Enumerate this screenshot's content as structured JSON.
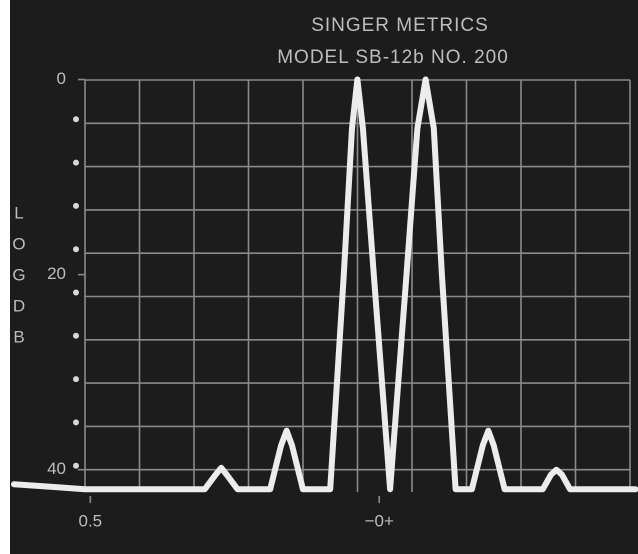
{
  "chart_data": {
    "type": "line",
    "title": "SINGER METRICS",
    "subtitle": "MODEL SB-12b NO. 200",
    "ylabel": [
      "L",
      "O",
      "G",
      "D",
      "B"
    ],
    "x": [
      -1.3,
      -0.5,
      0,
      1,
      2.2,
      2.4,
      2.5,
      2.6,
      2.8,
      3.4,
      3.6,
      3.7,
      3.8,
      4.0,
      4.5,
      4.75,
      4.9,
      5.0,
      5.1,
      5.3,
      5.6,
      5.9,
      6.1,
      6.25,
      6.4,
      6.55,
      6.8,
      7.1,
      7.3,
      7.4,
      7.5,
      7.7,
      8.4,
      8.55,
      8.65,
      8.75,
      8.9,
      9.5,
      10.1
    ],
    "series": [
      {
        "color": "#ececec",
        "values": [
          41.5,
          41.8,
          42,
          42,
          42,
          40.5,
          39.8,
          40.5,
          42,
          42,
          37.5,
          36,
          37.5,
          42,
          42,
          20,
          5,
          0,
          5,
          20,
          42,
          20,
          5,
          0,
          5,
          20,
          42,
          42,
          37.5,
          36,
          37.5,
          42,
          42,
          40.5,
          40,
          40.5,
          42,
          42,
          42
        ]
      }
    ],
    "xlim": [
      -1.3,
      10.11
    ],
    "ylim": [
      47,
      -2
    ],
    "yticks": [
      0,
      20,
      40
    ],
    "xticks": [
      {
        "value": 0.1,
        "label": "0.5"
      },
      {
        "value": 5.4,
        "label": "−0+"
      }
    ]
  }
}
